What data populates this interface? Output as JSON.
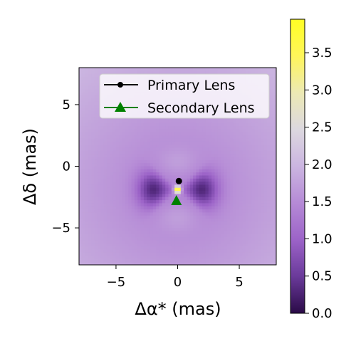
{
  "chart_data": {
    "type": "heatmap",
    "title": "",
    "xlabel": "Δα* (mas)",
    "ylabel": "Δδ (mas)",
    "xlim": [
      -8,
      8
    ],
    "ylim": [
      -8,
      8
    ],
    "xticks": [
      -5,
      0,
      5
    ],
    "yticks": [
      -5,
      0,
      5
    ],
    "xtick_labels": [
      "−5",
      "0",
      "5"
    ],
    "ytick_labels": [
      "−5",
      "0",
      "5"
    ],
    "grid": false,
    "legend_position": "top-right",
    "colormap": "purple-to-yellow",
    "colorbar": {
      "min": 0.0,
      "max": 3.95,
      "ticks": [
        0.0,
        0.5,
        1.0,
        1.5,
        2.0,
        2.5,
        3.0,
        3.5
      ],
      "tick_labels": [
        "0.0",
        "0.5",
        "1.0",
        "1.5",
        "2.0",
        "2.5",
        "3.0",
        "3.5"
      ],
      "colors": [
        "#2a0a47",
        "#6a3a9a",
        "#9c63c8",
        "#b58ad6",
        "#cbb5e0",
        "#dcd8df",
        "#ece9b4",
        "#fff55a",
        "#fffe24"
      ]
    },
    "series": [
      {
        "name": "Primary Lens",
        "marker": "circle",
        "color": "#000000",
        "points": [
          [
            0.1,
            -1.2
          ]
        ]
      },
      {
        "name": "Secondary Lens",
        "marker": "triangle",
        "color": "#008000",
        "points": [
          [
            -0.1,
            -2.8
          ]
        ]
      }
    ],
    "caustic_center": [
      0.0,
      -1.9
    ]
  }
}
